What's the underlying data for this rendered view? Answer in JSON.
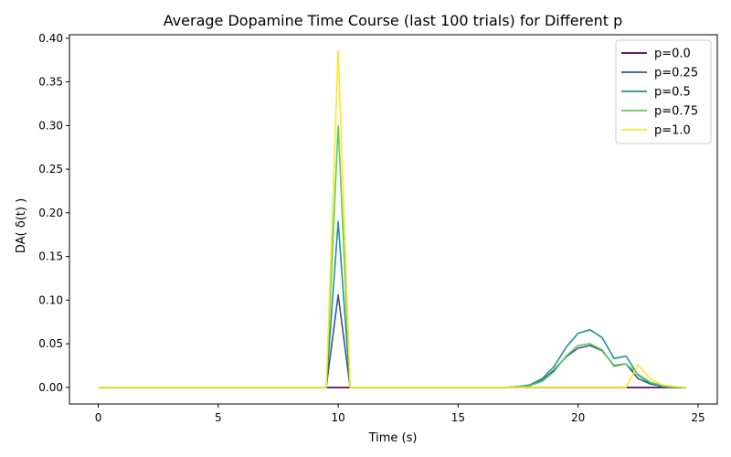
{
  "chart_data": {
    "type": "line",
    "title": "Average Dopamine Time Course (last 100 trials) for Different p",
    "xlabel": "Time (s)",
    "ylabel": "DA( δ(t) )",
    "xlim": [
      -1.2,
      25.8
    ],
    "ylim": [
      -0.019,
      0.404
    ],
    "x_ticks": [
      0,
      5,
      10,
      15,
      20,
      25
    ],
    "y_ticks": [
      0.0,
      0.05,
      0.1,
      0.15,
      0.2,
      0.25,
      0.3,
      0.35,
      0.4
    ],
    "grid": false,
    "legend_position": "top-right",
    "x": [
      0,
      0.5,
      1,
      1.5,
      2,
      2.5,
      3,
      3.5,
      4,
      4.5,
      5,
      5.5,
      6,
      6.5,
      7,
      7.5,
      8,
      8.5,
      9,
      9.5,
      10,
      10.5,
      11,
      11.5,
      12,
      12.5,
      13,
      13.5,
      14,
      14.5,
      15,
      15.5,
      16,
      16.5,
      17,
      17.5,
      18,
      18.5,
      19,
      19.5,
      20,
      20.5,
      21,
      21.5,
      22,
      22.5,
      23,
      23.5,
      24,
      24.5
    ],
    "series": [
      {
        "name": "p=0.0",
        "color": "#440154",
        "values": [
          0,
          0,
          0,
          0,
          0,
          0,
          0,
          0,
          0,
          0,
          0,
          0,
          0,
          0,
          0,
          0,
          0,
          0,
          0,
          0,
          0,
          0,
          0,
          0,
          0,
          0,
          0,
          0,
          0,
          0,
          0,
          0,
          0,
          0,
          0,
          0,
          0,
          0,
          0,
          0,
          0,
          0,
          0,
          0,
          0,
          0,
          0,
          0,
          0,
          0
        ]
      },
      {
        "name": "p=0.25",
        "color": "#3b528b",
        "values": [
          0,
          0,
          0,
          0,
          0,
          0,
          0,
          0,
          0,
          0,
          0,
          0,
          0,
          0,
          0,
          0,
          0,
          0,
          0,
          0,
          0.106,
          0,
          0,
          0,
          0,
          0,
          0,
          0,
          0,
          0,
          0,
          0,
          0,
          0,
          0,
          0.001,
          0.002,
          0.008,
          0.02,
          0.035,
          0.045,
          0.048,
          0.042,
          0.025,
          0.027,
          0.01,
          0.004,
          0.001,
          0,
          0
        ]
      },
      {
        "name": "p=0.5",
        "color": "#21918c",
        "values": [
          0,
          0,
          0,
          0,
          0,
          0,
          0,
          0,
          0,
          0,
          0,
          0,
          0,
          0,
          0,
          0,
          0,
          0,
          0,
          0,
          0.19,
          0,
          0,
          0,
          0,
          0,
          0,
          0,
          0,
          0,
          0,
          0,
          0,
          0,
          0,
          0.001,
          0.003,
          0.01,
          0.024,
          0.046,
          0.062,
          0.066,
          0.057,
          0.033,
          0.036,
          0.014,
          0.005,
          0.001,
          0,
          0
        ]
      },
      {
        "name": "p=0.75",
        "color": "#5ec962",
        "values": [
          0,
          0,
          0,
          0,
          0,
          0,
          0,
          0,
          0,
          0,
          0,
          0,
          0,
          0,
          0,
          0,
          0,
          0,
          0,
          0,
          0.3,
          0,
          0,
          0,
          0,
          0,
          0,
          0,
          0,
          0,
          0,
          0,
          0,
          0,
          0,
          0.001,
          0.002,
          0.007,
          0.018,
          0.036,
          0.048,
          0.05,
          0.043,
          0.024,
          0.027,
          0.015,
          0.006,
          0.002,
          0.001,
          0
        ]
      },
      {
        "name": "p=1.0",
        "color": "#fde725",
        "values": [
          0,
          0,
          0,
          0,
          0,
          0,
          0,
          0,
          0,
          0,
          0,
          0,
          0,
          0,
          0,
          0,
          0,
          0,
          0,
          0,
          0.385,
          0,
          0,
          0,
          0,
          0,
          0,
          0,
          0,
          0,
          0,
          0,
          0,
          0,
          0,
          0,
          0,
          0,
          0,
          0,
          0,
          0,
          0,
          0,
          0,
          0.026,
          0.01,
          0.003,
          0.001,
          0
        ]
      }
    ]
  }
}
